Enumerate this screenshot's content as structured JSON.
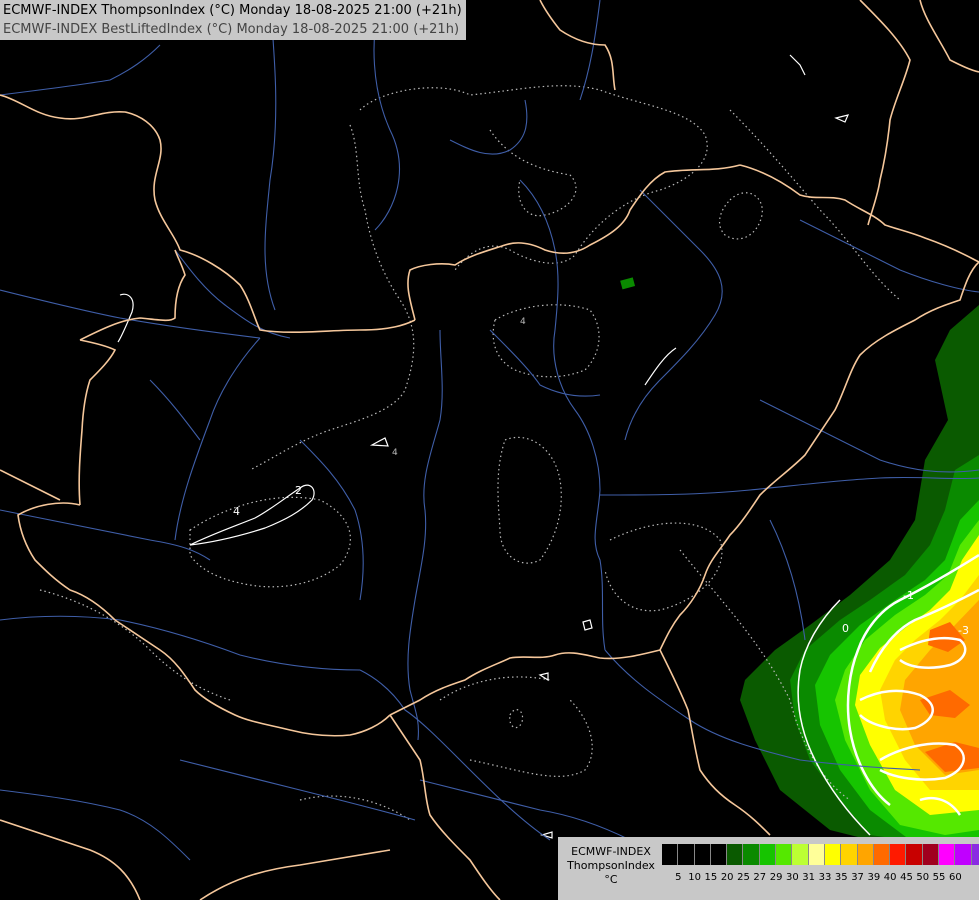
{
  "header": {
    "line1": "ECMWF-INDEX ThompsonIndex (°C) Monday 18-08-2025 21:00 (+21h)",
    "line2": "ECMWF-INDEX BestLiftedIndex (°C) Monday 18-08-2025 21:00 (+21h)"
  },
  "colors": {
    "border": "#f5c79b",
    "river": "#3f5ea8",
    "contour_dotted": "#bbbbbb",
    "contour_white": "#ffffff"
  },
  "map_labels": [
    {
      "text": "-1"
    },
    {
      "text": "0"
    },
    {
      "text": "-3"
    },
    {
      "text": "4"
    },
    {
      "text": "2"
    },
    {
      "text": "4"
    },
    {
      "text": "4"
    }
  ],
  "legend": {
    "title_line1": "ECMWF-INDEX",
    "title_line2": "ThompsonIndex",
    "title_line3": "°C",
    "swatches": [
      "#000000",
      "#000000",
      "#000000",
      "#000000",
      "#0a5a00",
      "#0a8a00",
      "#16c400",
      "#55e800",
      "#bcff33",
      "#ffff99",
      "#ffff00",
      "#ffd400",
      "#ffa500",
      "#ff6a00",
      "#ff1a00",
      "#c80000",
      "#a0001e",
      "#ff00ff",
      "#c000ff",
      "#8a2be2",
      "#4b2dd8",
      "#0a0aff"
    ],
    "ticks": [
      "5",
      "10",
      "15",
      "20",
      "25",
      "27",
      "29",
      "30",
      "31",
      "33",
      "35",
      "37",
      "39",
      "40",
      "45",
      "50",
      "55",
      "60"
    ]
  }
}
